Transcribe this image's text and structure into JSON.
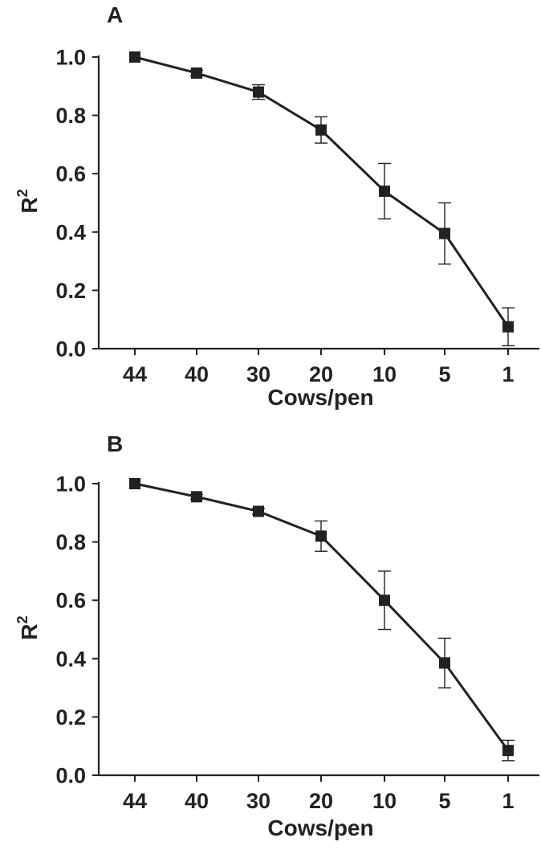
{
  "chart_data": [
    {
      "type": "line",
      "panel_label": "A",
      "categories": [
        "44",
        "40",
        "30",
        "20",
        "10",
        "5",
        "1"
      ],
      "series": [
        {
          "values": [
            1.0,
            0.945,
            0.88,
            0.75,
            0.54,
            0.395,
            0.075
          ],
          "error": [
            0.0,
            0.01,
            0.025,
            0.045,
            0.095,
            0.105,
            0.065
          ]
        }
      ],
      "xlabel": "Cows/pen",
      "ylabel_base": "R",
      "ylabel_sup": "2",
      "ylim": [
        0,
        1.0
      ],
      "yticks": [
        "0.0",
        "0.2",
        "0.4",
        "0.6",
        "0.8",
        "1.0"
      ],
      "grid": false,
      "color": "#222222"
    },
    {
      "type": "line",
      "panel_label": "B",
      "categories": [
        "44",
        "40",
        "30",
        "20",
        "10",
        "5",
        "1"
      ],
      "series": [
        {
          "values": [
            1.0,
            0.955,
            0.905,
            0.82,
            0.6,
            0.385,
            0.085
          ],
          "error": [
            0.0,
            0.008,
            0.01,
            0.052,
            0.1,
            0.085,
            0.035
          ]
        }
      ],
      "xlabel": "Cows/pen",
      "ylabel_base": "R",
      "ylabel_sup": "2",
      "ylim": [
        0,
        1.0
      ],
      "yticks": [
        "0.0",
        "0.2",
        "0.4",
        "0.6",
        "0.8",
        "1.0"
      ],
      "grid": false,
      "color": "#222222"
    }
  ]
}
